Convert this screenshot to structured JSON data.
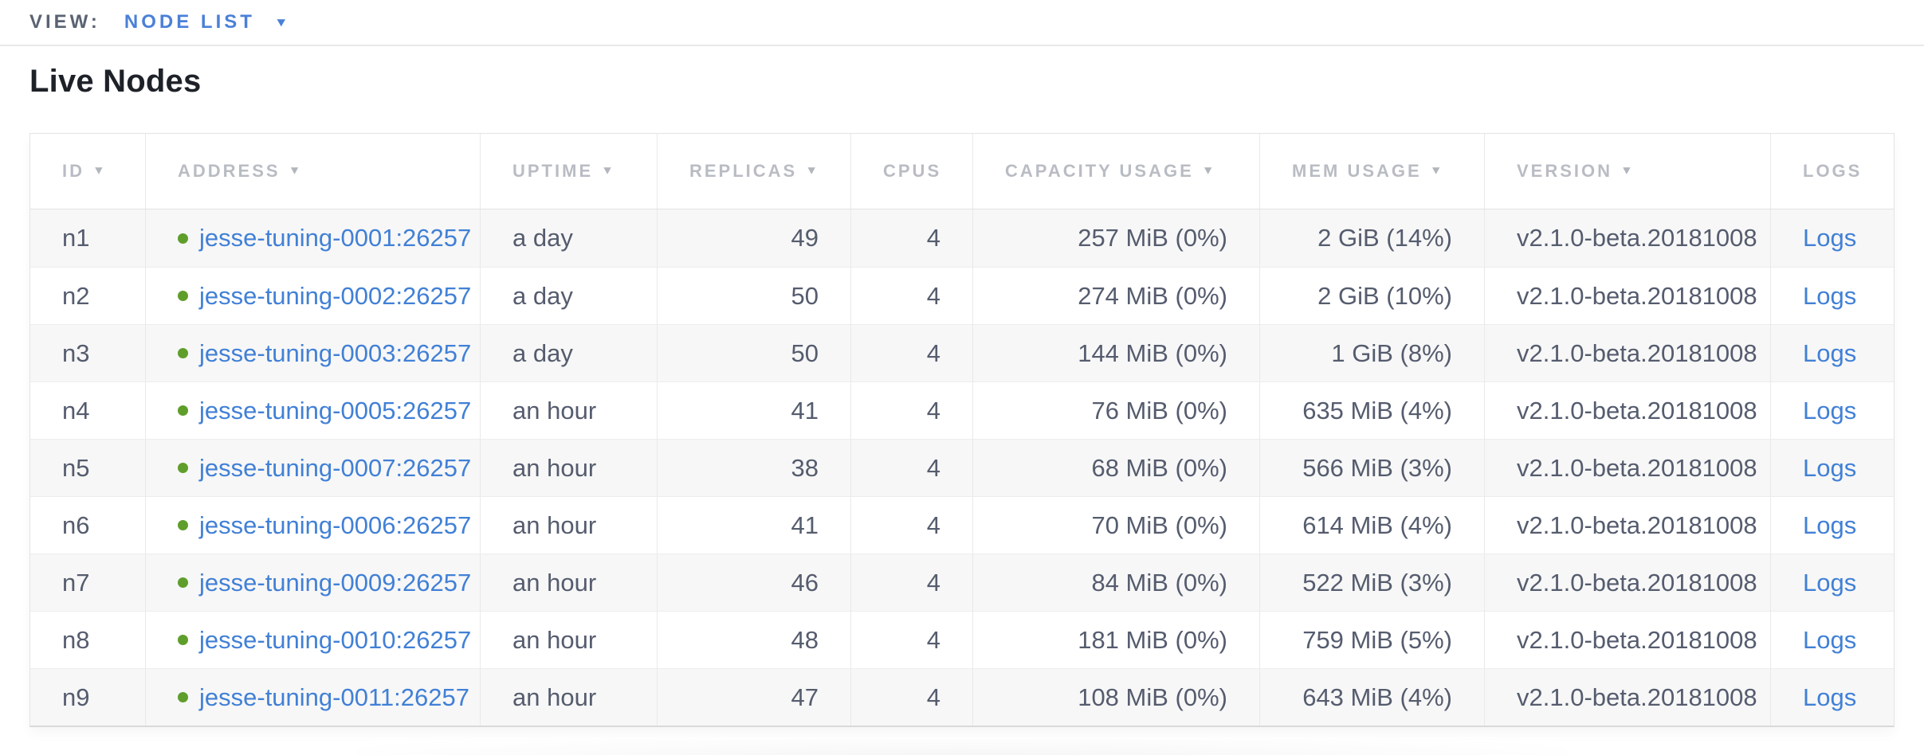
{
  "view_bar": {
    "label": "VIEW:",
    "selected": "NODE LIST",
    "caret": "▼"
  },
  "page": {
    "title": "Live Nodes"
  },
  "colors": {
    "link_blue": "#4180d6",
    "healthy_green": "#5f9e2b",
    "header_gray": "#b9bcc3",
    "cell_text": "#555c6e"
  },
  "table": {
    "sort_arrow": "▼",
    "columns": [
      {
        "label": "ID",
        "sortable": true
      },
      {
        "label": "ADDRESS",
        "sortable": true
      },
      {
        "label": "UPTIME",
        "sortable": true
      },
      {
        "label": "REPLICAS",
        "sortable": true
      },
      {
        "label": "CPUS",
        "sortable": false
      },
      {
        "label": "CAPACITY USAGE",
        "sortable": true
      },
      {
        "label": "MEM USAGE",
        "sortable": true
      },
      {
        "label": "VERSION",
        "sortable": true
      },
      {
        "label": "LOGS",
        "sortable": false
      }
    ],
    "rows": [
      {
        "id": "n1",
        "status": "healthy",
        "address": "jesse-tuning-0001:26257",
        "uptime": "a day",
        "replicas": "49",
        "cpus": "4",
        "capacity": "257 MiB (0%)",
        "mem": "2 GiB (14%)",
        "version": "v2.1.0-beta.20181008",
        "logs": "Logs"
      },
      {
        "id": "n2",
        "status": "healthy",
        "address": "jesse-tuning-0002:26257",
        "uptime": "a day",
        "replicas": "50",
        "cpus": "4",
        "capacity": "274 MiB (0%)",
        "mem": "2 GiB (10%)",
        "version": "v2.1.0-beta.20181008",
        "logs": "Logs"
      },
      {
        "id": "n3",
        "status": "healthy",
        "address": "jesse-tuning-0003:26257",
        "uptime": "a day",
        "replicas": "50",
        "cpus": "4",
        "capacity": "144 MiB (0%)",
        "mem": "1 GiB (8%)",
        "version": "v2.1.0-beta.20181008",
        "logs": "Logs"
      },
      {
        "id": "n4",
        "status": "healthy",
        "address": "jesse-tuning-0005:26257",
        "uptime": "an hour",
        "replicas": "41",
        "cpus": "4",
        "capacity": "76 MiB (0%)",
        "mem": "635 MiB (4%)",
        "version": "v2.1.0-beta.20181008",
        "logs": "Logs"
      },
      {
        "id": "n5",
        "status": "healthy",
        "address": "jesse-tuning-0007:26257",
        "uptime": "an hour",
        "replicas": "38",
        "cpus": "4",
        "capacity": "68 MiB (0%)",
        "mem": "566 MiB (3%)",
        "version": "v2.1.0-beta.20181008",
        "logs": "Logs"
      },
      {
        "id": "n6",
        "status": "healthy",
        "address": "jesse-tuning-0006:26257",
        "uptime": "an hour",
        "replicas": "41",
        "cpus": "4",
        "capacity": "70 MiB (0%)",
        "mem": "614 MiB (4%)",
        "version": "v2.1.0-beta.20181008",
        "logs": "Logs"
      },
      {
        "id": "n7",
        "status": "healthy",
        "address": "jesse-tuning-0009:26257",
        "uptime": "an hour",
        "replicas": "46",
        "cpus": "4",
        "capacity": "84 MiB (0%)",
        "mem": "522 MiB (3%)",
        "version": "v2.1.0-beta.20181008",
        "logs": "Logs"
      },
      {
        "id": "n8",
        "status": "healthy",
        "address": "jesse-tuning-0010:26257",
        "uptime": "an hour",
        "replicas": "48",
        "cpus": "4",
        "capacity": "181 MiB (0%)",
        "mem": "759 MiB (5%)",
        "version": "v2.1.0-beta.20181008",
        "logs": "Logs"
      },
      {
        "id": "n9",
        "status": "healthy",
        "address": "jesse-tuning-0011:26257",
        "uptime": "an hour",
        "replicas": "47",
        "cpus": "4",
        "capacity": "108 MiB (0%)",
        "mem": "643 MiB (4%)",
        "version": "v2.1.0-beta.20181008",
        "logs": "Logs"
      }
    ]
  }
}
